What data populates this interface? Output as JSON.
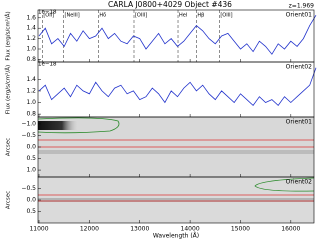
{
  "chart_data": [
    {
      "type": "line",
      "title": "CARLA J0800+4029 Object #436",
      "annotation": "z=1.969",
      "label": "Orient01",
      "offset_label": "1e−18",
      "ylabel": "Flux (erg/s/cm²/Å)",
      "color": "#2233cc",
      "xlim": [
        10980,
        16460
      ],
      "ylim": [
        0.75,
        1.75
      ],
      "yticks": [
        0.8,
        {
          "value": 1.0,
          "label": "1.0"
        },
        1.2,
        1.4,
        1.6
      ],
      "lines": [
        {
          "wavelength": 11066,
          "label": "[OII]"
        },
        {
          "wavelength": 11487,
          "label": "[NeIII]"
        },
        {
          "wavelength": 12178,
          "label": "Hδ"
        },
        {
          "wavelength": 12886,
          "label": "[OIII]"
        },
        {
          "wavelength": 13760,
          "label": "HeI"
        },
        {
          "wavelength": 14125,
          "label": "Hβ"
        },
        {
          "wavelength": 14580,
          "label": "[OIII]"
        }
      ],
      "x": [
        11000,
        11125,
        11250,
        11375,
        11500,
        11625,
        11750,
        11875,
        12000,
        12125,
        12250,
        12375,
        12500,
        12625,
        12750,
        12875,
        13000,
        13125,
        13250,
        13375,
        13500,
        13625,
        13750,
        13875,
        14000,
        14125,
        14250,
        14375,
        14500,
        14625,
        14750,
        14875,
        15000,
        15125,
        15250,
        15375,
        15500,
        15625,
        15750,
        15875,
        16000,
        16125,
        16250,
        16375,
        16500
      ],
      "values": [
        1.25,
        1.4,
        1.1,
        1.2,
        1.05,
        1.3,
        1.15,
        1.35,
        1.2,
        1.25,
        1.4,
        1.2,
        1.3,
        1.15,
        1.1,
        1.25,
        1.2,
        1.0,
        1.15,
        1.3,
        1.1,
        1.2,
        1.05,
        1.15,
        1.3,
        1.45,
        1.35,
        1.2,
        1.1,
        1.25,
        1.3,
        1.15,
        1.0,
        1.1,
        0.95,
        1.15,
        1.05,
        0.9,
        1.1,
        1.0,
        1.15,
        1.05,
        1.2,
        1.45,
        1.65
      ]
    },
    {
      "type": "line",
      "label": "Orient02",
      "offset_label": "1e−18",
      "ylabel": "Flux (erg/s/cm²/Å)",
      "color": "#2233cc",
      "xlim": [
        10980,
        16460
      ],
      "ylim": [
        0.75,
        1.7
      ],
      "yticks": [
        0.8,
        {
          "value": 1.0,
          "label": "1.0"
        },
        1.2,
        1.4
      ],
      "x": [
        11000,
        11125,
        11250,
        11375,
        11500,
        11625,
        11750,
        11875,
        12000,
        12125,
        12250,
        12375,
        12500,
        12625,
        12750,
        12875,
        13000,
        13125,
        13250,
        13375,
        13500,
        13625,
        13750,
        13875,
        14000,
        14125,
        14250,
        14375,
        14500,
        14625,
        14750,
        14875,
        15000,
        15125,
        15250,
        15375,
        15500,
        15625,
        15750,
        15875,
        16000,
        16125,
        16250,
        16375,
        16500
      ],
      "values": [
        1.2,
        1.3,
        1.05,
        1.15,
        1.25,
        1.1,
        1.3,
        1.2,
        1.15,
        1.35,
        1.2,
        1.1,
        1.25,
        1.3,
        1.15,
        1.2,
        1.05,
        1.1,
        1.25,
        1.15,
        1.0,
        1.2,
        1.1,
        1.25,
        1.35,
        1.2,
        1.3,
        1.15,
        1.05,
        1.2,
        1.1,
        1.0,
        1.15,
        1.05,
        0.95,
        1.1,
        1.0,
        1.05,
        0.95,
        1.1,
        1.0,
        1.1,
        1.2,
        1.3,
        1.6
      ]
    },
    {
      "type": "image",
      "label": "Orient01",
      "ylabel": "Arcsec",
      "xlim": [
        10980,
        16460
      ],
      "ylim": [
        1.3,
        -1.3
      ],
      "yticks": [
        {
          "value": -1.0,
          "label": "−1.0"
        },
        {
          "value": -0.5,
          "label": "−0.5"
        },
        {
          "value": 0.0,
          "label": "0.0"
        },
        0.5,
        {
          "value": 1.0,
          "label": "1.0"
        }
      ]
    },
    {
      "type": "image",
      "label": "Orient02",
      "ylabel": "Arcsec",
      "xlabel": "Wavelength (Å)",
      "xlim": [
        10980,
        16460
      ],
      "ylim": [
        1.0,
        -1.0
      ],
      "yticks": [
        {
          "value": -0.5,
          "label": "−0.5"
        },
        {
          "value": 0.0,
          "label": "0.0"
        },
        0.5
      ],
      "xticks": [
        11000,
        12000,
        13000,
        14000,
        15000,
        16000
      ]
    }
  ]
}
